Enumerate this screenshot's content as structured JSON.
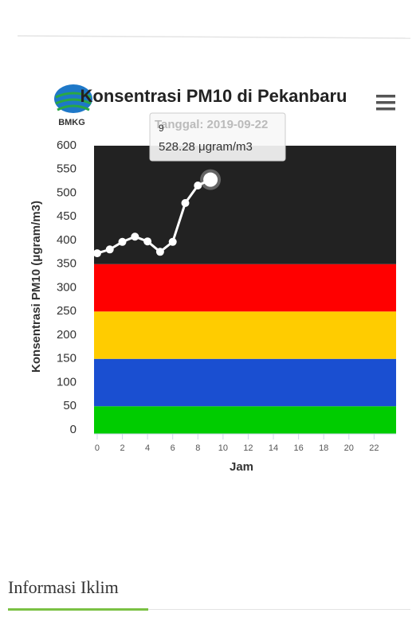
{
  "logo": "BMKG",
  "chart_data": {
    "type": "line",
    "title": "Konsentrasi PM10 di Pekanbaru",
    "x_label": "Jam",
    "y_label": "Konsentrasi PM10 (μgram/m3)",
    "x": [
      0,
      1,
      2,
      3,
      4,
      5,
      6,
      7,
      8,
      9
    ],
    "series": [
      {
        "name": "PM10",
        "color": "#ffffff",
        "values": [
          373,
          381,
          397,
          408,
          398,
          376,
          397,
          479,
          516,
          528.28
        ]
      }
    ],
    "xlim": [
      -0.25,
      23.75
    ],
    "xticks": [
      0,
      2,
      4,
      6,
      8,
      10,
      12,
      14,
      16,
      18,
      20,
      22
    ],
    "ylim": [
      0,
      600
    ],
    "yticks": [
      0,
      50,
      100,
      150,
      200,
      250,
      300,
      350,
      400,
      450,
      500,
      550,
      600
    ],
    "plot_bands": [
      {
        "from": 0,
        "to": 50,
        "color": "#00cc00"
      },
      {
        "from": 50,
        "to": 150,
        "color": "#1a4fd1"
      },
      {
        "from": 150,
        "to": 250,
        "color": "#ffcc00"
      },
      {
        "from": 250,
        "to": 350,
        "color": "#ff0000"
      },
      {
        "from": 350,
        "to": 600,
        "color": "#222222"
      }
    ],
    "tooltip": {
      "header": "9",
      "date": "Tanggal: 2019-09-22",
      "value": "528.28 μgram/m3"
    }
  },
  "section": {
    "title": "Informasi Iklim"
  }
}
